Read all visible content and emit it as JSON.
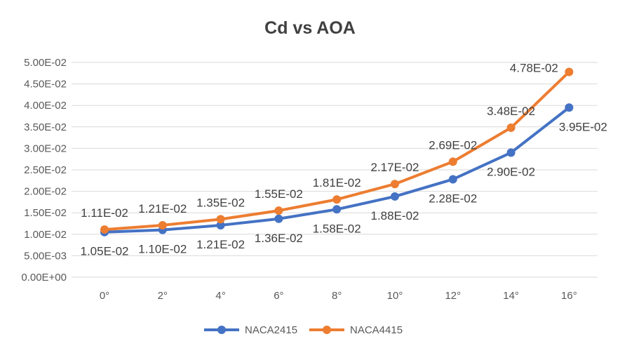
{
  "chart_data": {
    "type": "line",
    "title": "Cd vs AOA",
    "xlabel": "",
    "ylabel": "",
    "categories": [
      "0°",
      "2°",
      "4°",
      "6°",
      "8°",
      "10°",
      "12°",
      "14°",
      "16°"
    ],
    "ylim": [
      0,
      0.05
    ],
    "yticks": [
      {
        "value": 0.05,
        "label": "5.00E-02"
      },
      {
        "value": 0.045,
        "label": "4.50E-02"
      },
      {
        "value": 0.04,
        "label": "4.00E-02"
      },
      {
        "value": 0.035,
        "label": "3.50E-02"
      },
      {
        "value": 0.03,
        "label": "3.00E-02"
      },
      {
        "value": 0.025,
        "label": "2.50E-02"
      },
      {
        "value": 0.02,
        "label": "2.00E-02"
      },
      {
        "value": 0.015,
        "label": "1.50E-02"
      },
      {
        "value": 0.01,
        "label": "1.00E-02"
      },
      {
        "value": 0.005,
        "label": "5.00E-03"
      },
      {
        "value": 0,
        "label": "0.00E+00"
      }
    ],
    "grid": true,
    "legend": "bottom",
    "series": [
      {
        "name": "NACA2415",
        "color": "#4472c4",
        "values": [
          0.0105,
          0.011,
          0.0121,
          0.0136,
          0.0158,
          0.0188,
          0.0228,
          0.029,
          0.0395
        ],
        "labels": [
          "1.05E-02",
          "1.10E-02",
          "1.21E-02",
          "1.36E-02",
          "1.58E-02",
          "1.88E-02",
          "2.28E-02",
          "2.90E-02",
          "3.95E-02"
        ]
      },
      {
        "name": "NACA4415",
        "color": "#ed7d31",
        "values": [
          0.0111,
          0.0121,
          0.0135,
          0.0155,
          0.0181,
          0.0217,
          0.0269,
          0.0348,
          0.0478
        ],
        "labels": [
          "1.11E-02",
          "1.21E-02",
          "1.35E-02",
          "1.55E-02",
          "1.81E-02",
          "2.17E-02",
          "2.69E-02",
          "3.48E-02",
          "4.78E-02"
        ]
      }
    ]
  }
}
